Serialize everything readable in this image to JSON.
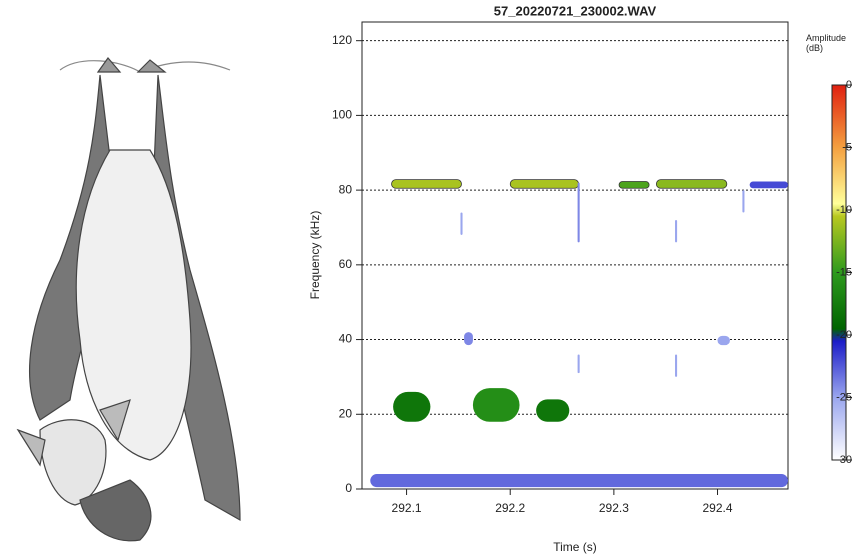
{
  "chart_data": {
    "type": "spectrogram",
    "title": "57_20220721_230002.WAV",
    "x_label": "Time (s)",
    "y_label": "Frequency (kHz)",
    "colorbar_title": "Amplitude (dB)",
    "xlim": [
      292.057,
      292.468
    ],
    "ylim": [
      0,
      125
    ],
    "xticks": [
      292.1,
      292.2,
      292.3,
      292.4
    ],
    "yticks": [
      0,
      20,
      40,
      60,
      80,
      100,
      120
    ],
    "grid": true,
    "clim": [
      -30,
      0
    ],
    "cticks": [
      0,
      -5,
      -10,
      -15,
      -20,
      -25,
      -30
    ],
    "colorscale": [
      {
        "value": -30,
        "color": "#ffffff"
      },
      {
        "value": -25,
        "color": "#9aa6ee"
      },
      {
        "value": -20.5,
        "color": "#1c1cc8"
      },
      {
        "value": -19.5,
        "color": "#006400"
      },
      {
        "value": -15,
        "color": "#2e9a1e"
      },
      {
        "value": -10.5,
        "color": "#b8c820"
      },
      {
        "value": -9.5,
        "color": "#ffff9a"
      },
      {
        "value": -5,
        "color": "#f4a040"
      },
      {
        "value": 0,
        "color": "#e02010"
      }
    ],
    "blobs": [
      {
        "t0": 292.0855,
        "t1": 292.153,
        "f0": 80.5,
        "f1": 82.8,
        "db": -11
      },
      {
        "t0": 292.2,
        "t1": 292.266,
        "f0": 80.5,
        "f1": 82.8,
        "db": -11
      },
      {
        "t0": 292.305,
        "t1": 292.334,
        "f0": 80.5,
        "f1": 82.3,
        "db": -14
      },
      {
        "t0": 292.341,
        "t1": 292.409,
        "f0": 80.5,
        "f1": 82.8,
        "db": -12
      },
      {
        "t0": 292.431,
        "t1": 292.468,
        "f0": 80.5,
        "f1": 82.3,
        "db": -22
      },
      {
        "t0": 292.087,
        "t1": 292.123,
        "f0": 18,
        "f1": 26,
        "db": -18
      },
      {
        "t0": 292.164,
        "t1": 292.209,
        "f0": 18,
        "f1": 27,
        "db": -16
      },
      {
        "t0": 292.225,
        "t1": 292.257,
        "f0": 18,
        "f1": 24,
        "db": -18
      },
      {
        "t0": 292.1555,
        "t1": 292.164,
        "f0": 38.5,
        "f1": 42,
        "db": -24
      },
      {
        "t0": 292.4,
        "t1": 292.412,
        "f0": 38.5,
        "f1": 41,
        "db": -25
      },
      {
        "t0": 292.065,
        "t1": 292.468,
        "f0": 0.5,
        "f1": 4,
        "db": -23
      },
      {
        "t0": 292.265,
        "t1": 292.267,
        "f0": 66,
        "f1": 82,
        "db": -24
      },
      {
        "t0": 292.152,
        "t1": 292.154,
        "f0": 68,
        "f1": 74,
        "db": -25
      },
      {
        "t0": 292.359,
        "t1": 292.361,
        "f0": 66,
        "f1": 72,
        "db": -25
      },
      {
        "t0": 292.424,
        "t1": 292.426,
        "f0": 74,
        "f1": 80,
        "db": -25
      },
      {
        "t0": 292.265,
        "t1": 292.267,
        "f0": 31,
        "f1": 36,
        "db": -25
      },
      {
        "t0": 292.359,
        "t1": 292.361,
        "f0": 30,
        "f1": 36,
        "db": -25
      }
    ]
  }
}
